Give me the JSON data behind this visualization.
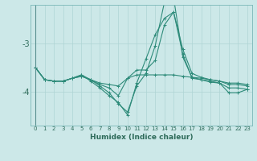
{
  "xlabel": "Humidex (Indice chaleur)",
  "x_values": [
    0,
    1,
    2,
    3,
    4,
    5,
    6,
    7,
    8,
    9,
    10,
    11,
    12,
    13,
    14,
    15,
    16,
    17,
    18,
    19,
    20,
    21,
    22,
    23
  ],
  "line1": [
    -3.5,
    -3.75,
    -3.78,
    -3.78,
    -3.72,
    -3.68,
    -3.75,
    -3.82,
    -3.85,
    -3.88,
    -3.72,
    -3.65,
    -3.65,
    -3.65,
    -3.65,
    -3.65,
    -3.68,
    -3.7,
    -3.72,
    -3.75,
    -3.78,
    -3.82,
    -3.82,
    -3.85
  ],
  "line2": [
    -3.5,
    -3.75,
    -3.78,
    -3.78,
    -3.72,
    -3.68,
    -3.75,
    -3.88,
    -4.02,
    -4.25,
    -4.42,
    -3.88,
    -3.62,
    -3.05,
    -2.15,
    -2.05,
    -3.28,
    -3.7,
    -3.75,
    -3.78,
    -3.82,
    -3.92,
    -3.92,
    -3.95
  ],
  "line3": [
    -3.5,
    -3.75,
    -3.78,
    -3.78,
    -3.72,
    -3.65,
    -3.78,
    -3.92,
    -4.08,
    -4.22,
    -4.48,
    -3.82,
    -3.32,
    -2.82,
    -2.48,
    -2.35,
    -3.22,
    -3.72,
    -3.75,
    -3.8,
    -3.82,
    -4.02,
    -4.02,
    -3.95
  ],
  "line4": [
    -3.5,
    -3.75,
    -3.78,
    -3.78,
    -3.72,
    -3.65,
    -3.75,
    -3.85,
    -3.92,
    -4.08,
    -3.72,
    -3.55,
    -3.55,
    -3.35,
    -2.62,
    -2.35,
    -3.12,
    -3.62,
    -3.7,
    -3.75,
    -3.78,
    -3.85,
    -3.85,
    -3.88
  ],
  "line_color": "#2e8b7a",
  "bg_color": "#cce8e8",
  "grid_color": "#aed4d4",
  "ylim": [
    -4.7,
    -2.2
  ],
  "xlim": [
    -0.5,
    23.5
  ],
  "yticks": [
    -4.0,
    -3.0
  ],
  "ytick_labels": [
    "-4",
    "-3"
  ],
  "xticks": [
    0,
    1,
    2,
    3,
    4,
    5,
    6,
    7,
    8,
    9,
    10,
    11,
    12,
    13,
    14,
    15,
    16,
    17,
    18,
    19,
    20,
    21,
    22,
    23
  ]
}
